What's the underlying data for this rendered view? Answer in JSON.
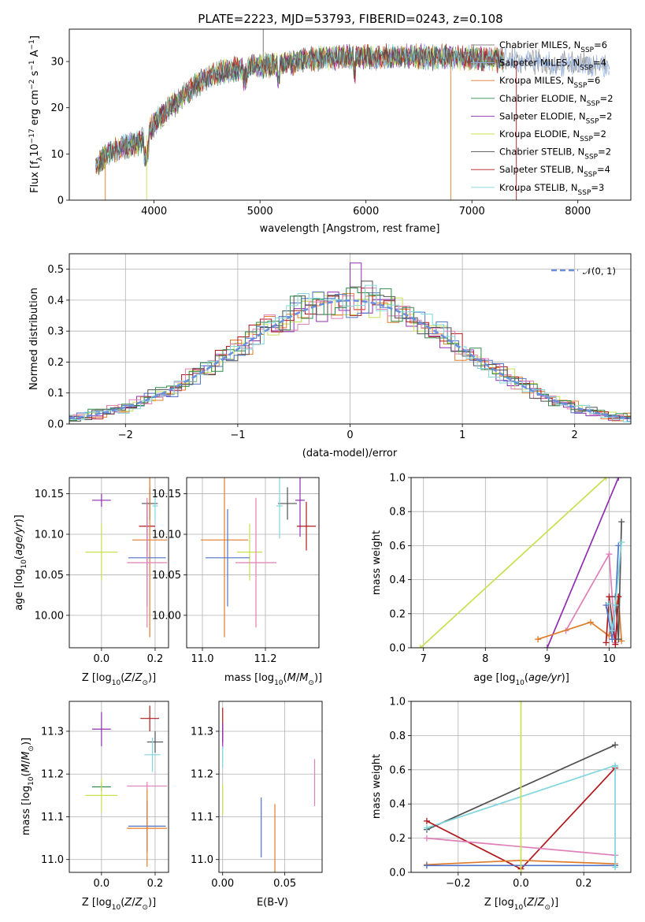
{
  "figure_title": "PLATE=2223, MJD=53793, FIBERID=0243, z=0.108",
  "colors": {
    "chabrier_miles": "#4e73c9",
    "salpeter_miles": "#e07b2a",
    "kroupa_miles": "#e07b2a",
    "chabrier_elodie": "#2f8a4a",
    "salpeter_elodie": "#8f2fb0",
    "kroupa_elodie": "#c8e050",
    "chabrier_stelib": "#505050",
    "salpeter_stelib": "#b0181c",
    "kroupa_stelib": "#7fd6dd",
    "pink": "#e07fb8",
    "normal": "#6a8fdc"
  },
  "chart_data": [
    {
      "id": "spectrum",
      "type": "line",
      "title": "PLATE=2223, MJD=53793, FIBERID=0243, z=0.108",
      "xlabel": "wavelength [Angstrom, rest frame]",
      "ylabel_main": "Flux [f",
      "ylabel_sub": "λ",
      "ylabel_rest": "10",
      "ylabel_exp1": "−17",
      "ylabel_mid": " erg cm",
      "ylabel_exp2": "−2",
      "ylabel_s": " s",
      "ylabel_exp3": "−1",
      "ylabel_a": " A",
      "ylabel_exp4": "−1",
      "ylabel_end": "]",
      "xlim": [
        3200,
        8500
      ],
      "ylim": [
        0,
        37
      ],
      "xticks": [
        4000,
        5000,
        6000,
        7000,
        8000
      ],
      "yticks": [
        0,
        10,
        20,
        30
      ],
      "legend_position": "upper-right",
      "legend": [
        {
          "name": "Chabrier MILES, N",
          "sub": "SSP",
          "tail": "=6",
          "color": "#8a8a8a"
        },
        {
          "name": "Salpeter MILES, N",
          "sub": "SSP",
          "tail": "=4",
          "color": "#8fb0e6"
        },
        {
          "name": "Kroupa MILES, N",
          "sub": "SSP",
          "tail": "=6",
          "color": "#e07b2a"
        },
        {
          "name": "Chabrier ELODIE, N",
          "sub": "SSP",
          "tail": "=2",
          "color": "#2f8a4a"
        },
        {
          "name": "Salpeter ELODIE, N",
          "sub": "SSP",
          "tail": "=2",
          "color": "#8f2fb0"
        },
        {
          "name": "Kroupa ELODIE, N",
          "sub": "SSP",
          "tail": "=2",
          "color": "#c8e050"
        },
        {
          "name": "Chabrier STELIB, N",
          "sub": "SSP",
          "tail": "=2",
          "color": "#505050"
        },
        {
          "name": "Salpeter STELIB, N",
          "sub": "SSP",
          "tail": "=4",
          "color": "#b0181c"
        },
        {
          "name": "Kroupa STELIB, N",
          "sub": "SSP",
          "tail": "=3",
          "color": "#7fd6dd"
        }
      ],
      "continuum": {
        "x": [
          3450,
          3600,
          3700,
          3800,
          3900,
          4000,
          4100,
          4200,
          4300,
          4400,
          4500,
          4600,
          4800,
          5000,
          5200,
          5500,
          5800,
          6000,
          6300,
          6600,
          6900,
          7200,
          7500,
          7800,
          8000,
          8300
        ],
        "y": [
          7.5,
          10.5,
          11.5,
          12,
          13,
          16.5,
          19,
          21,
          23,
          25,
          26.5,
          27.5,
          28.5,
          29,
          29.5,
          30.5,
          31,
          31,
          31,
          31,
          31,
          30.5,
          30,
          29.5,
          29.5,
          29
        ]
      }
    },
    {
      "id": "residual-histogram",
      "type": "line",
      "xlabel": "(data-model)/error",
      "ylabel": "Normed distribution",
      "xlim": [
        -2.5,
        2.5
      ],
      "ylim": [
        0,
        0.55
      ],
      "xticks": [
        -2,
        -1,
        0,
        1,
        2
      ],
      "xtick_labels": [
        "−2",
        "−1",
        "0",
        "1",
        "2"
      ],
      "yticks": [
        0.0,
        0.1,
        0.2,
        0.3,
        0.4,
        0.5
      ],
      "ytick_labels": [
        "0.0",
        "0.1",
        "0.2",
        "0.3",
        "0.4",
        "0.5"
      ],
      "legend": "𝒩(0, 1)",
      "legend_position": "top-right",
      "grid": true
    },
    {
      "id": "age-vs-Z",
      "type": "scatter",
      "xlabel": "Z [log",
      "ylabel": "age  [log",
      "xlim": [
        -0.12,
        0.25
      ],
      "ylim": [
        9.96,
        10.17
      ],
      "xticks": [
        0.0,
        0.2
      ],
      "xtick_labels": [
        "0.0",
        "0.2"
      ],
      "yticks": [
        10.0,
        10.05,
        10.1,
        10.15
      ],
      "ytick_labels": [
        "10.00",
        "10.05",
        "10.10",
        "10.15"
      ],
      "points": [
        {
          "x": 0.0,
          "y": 10.142,
          "xerr": 0.035,
          "yerr": 0.008,
          "color": "#8f2fb0"
        },
        {
          "x": 0.0,
          "y": 10.078,
          "xerr": 0.06,
          "yerr": 0.035,
          "color": "#c8e050"
        },
        {
          "x": 0.18,
          "y": 10.138,
          "xerr": 0.03,
          "yerr": 0.02,
          "color": "#505050"
        },
        {
          "x": 0.17,
          "y": 10.11,
          "xerr": 0.03,
          "yerr": 0.03,
          "color": "#b0181c"
        },
        {
          "x": 0.18,
          "y": 10.093,
          "xerr": 0.065,
          "yerr": 0.12,
          "color": "#e07b2a"
        },
        {
          "x": 0.17,
          "y": 10.071,
          "xerr": 0.07,
          "yerr": 0.06,
          "color": "#4e73c9"
        },
        {
          "x": 0.17,
          "y": 10.065,
          "xerr": 0.075,
          "yerr": 0.08,
          "color": "#e07fb8"
        },
        {
          "x": 0.2,
          "y": 10.135,
          "xerr": 0.01,
          "yerr": 0.02,
          "color": "#7fd6dd"
        }
      ]
    },
    {
      "id": "age-vs-mass",
      "type": "scatter",
      "xlabel": "mass [log",
      "xlim": [
        10.95,
        11.37
      ],
      "ylim": [
        9.96,
        10.17
      ],
      "xticks": [
        11.0,
        11.2
      ],
      "xtick_labels": [
        "11.0",
        "11.2"
      ],
      "yticks": [
        10.0,
        10.05,
        10.1,
        10.15
      ],
      "ytick_labels": [
        "10.00",
        "10.05",
        "10.10",
        "10.15"
      ],
      "points": [
        {
          "x": 11.31,
          "y": 10.142,
          "xerr": 0.015,
          "yerr": 0.045,
          "color": "#8f2fb0"
        },
        {
          "x": 11.15,
          "y": 10.078,
          "xerr": 0.04,
          "yerr": 0.035,
          "color": "#c8e050"
        },
        {
          "x": 11.27,
          "y": 10.138,
          "xerr": 0.03,
          "yerr": 0.02,
          "color": "#505050"
        },
        {
          "x": 11.33,
          "y": 10.11,
          "xerr": 0.03,
          "yerr": 0.03,
          "color": "#b0181c"
        },
        {
          "x": 11.07,
          "y": 10.093,
          "xerr": 0.075,
          "yerr": 0.12,
          "color": "#e07b2a"
        },
        {
          "x": 11.08,
          "y": 10.071,
          "xerr": 0.07,
          "yerr": 0.06,
          "color": "#4e73c9"
        },
        {
          "x": 11.17,
          "y": 10.065,
          "xerr": 0.065,
          "yerr": 0.08,
          "color": "#e07fb8"
        },
        {
          "x": 11.245,
          "y": 10.135,
          "xerr": 0.01,
          "yerr": 0.04,
          "color": "#7fd6dd"
        }
      ]
    },
    {
      "id": "weight-vs-age",
      "type": "line",
      "xlabel": "age  [log",
      "ylabel": "mass weight",
      "xlim": [
        6.8,
        10.35
      ],
      "ylim": [
        0,
        1.0
      ],
      "xticks": [
        7,
        8,
        9,
        10
      ],
      "xtick_labels": [
        "7",
        "8",
        "9",
        "10"
      ],
      "yticks": [
        0.0,
        0.2,
        0.4,
        0.6,
        0.8,
        1.0
      ],
      "ytick_labels": [
        "0.0",
        "0.2",
        "0.4",
        "0.6",
        "0.8",
        "1.0"
      ],
      "series": [
        {
          "color": "#c8e050",
          "x": [
            6.95,
            9.95
          ],
          "y": [
            0.0,
            1.0
          ]
        },
        {
          "color": "#8f2fb0",
          "x": [
            9.0,
            10.15
          ],
          "y": [
            0.0,
            1.0
          ]
        },
        {
          "color": "#e07fb8",
          "x": [
            9.3,
            10.0,
            10.1
          ],
          "y": [
            0.1,
            0.55,
            0.03
          ]
        },
        {
          "color": "#e07b2a",
          "x": [
            8.85,
            9.7,
            10.0,
            10.15,
            10.2
          ],
          "y": [
            0.05,
            0.15,
            0.07,
            0.3,
            0.04
          ]
        },
        {
          "color": "#505050",
          "x": [
            10.1,
            10.15,
            10.2
          ],
          "y": [
            0.3,
            0.05,
            0.74
          ]
        },
        {
          "color": "#b0181c",
          "x": [
            9.95,
            10.0,
            10.1,
            10.15
          ],
          "y": [
            0.03,
            0.3,
            0.02,
            0.3
          ]
        },
        {
          "color": "#4e73c9",
          "x": [
            9.95,
            10.05,
            10.1,
            10.15
          ],
          "y": [
            0.25,
            0.05,
            0.25,
            0.6
          ]
        },
        {
          "color": "#7fd6dd",
          "x": [
            10.0,
            10.05,
            10.1,
            10.2
          ],
          "y": [
            0.26,
            0.1,
            0.25,
            0.62
          ]
        }
      ]
    },
    {
      "id": "mass-vs-Z",
      "type": "scatter",
      "xlabel": "Z [log",
      "ylabel": "mass [log",
      "xlim": [
        -0.12,
        0.25
      ],
      "ylim": [
        10.97,
        11.37
      ],
      "xticks": [
        0.0,
        0.2
      ],
      "xtick_labels": [
        "0.0",
        "0.2"
      ],
      "yticks": [
        11.0,
        11.1,
        11.2,
        11.3
      ],
      "ytick_labels": [
        "11.0",
        "11.1",
        "11.2",
        "11.3"
      ],
      "points": [
        {
          "x": 0.0,
          "y": 11.305,
          "xerr": 0.035,
          "yerr": 0.04,
          "color": "#8f2fb0"
        },
        {
          "x": 0.18,
          "y": 11.33,
          "xerr": 0.035,
          "yerr": 0.03,
          "color": "#b0181c"
        },
        {
          "x": 0.2,
          "y": 11.275,
          "xerr": 0.03,
          "yerr": 0.025,
          "color": "#505050"
        },
        {
          "x": 0.19,
          "y": 11.245,
          "xerr": 0.03,
          "yerr": 0.04,
          "color": "#7fd6dd"
        },
        {
          "x": 0.0,
          "y": 11.17,
          "xerr": 0.035,
          "yerr": 0.01,
          "color": "#2f8a4a"
        },
        {
          "x": 0.17,
          "y": 11.172,
          "xerr": 0.075,
          "yerr": 0.01,
          "color": "#e07fb8"
        },
        {
          "x": 0.0,
          "y": 11.15,
          "xerr": 0.06,
          "yerr": 0.04,
          "color": "#c8e050"
        },
        {
          "x": 0.17,
          "y": 11.078,
          "xerr": 0.07,
          "yerr": 0.06,
          "color": "#4e73c9"
        },
        {
          "x": 0.17,
          "y": 11.073,
          "xerr": 0.075,
          "yerr": 0.09,
          "color": "#e07b2a"
        }
      ]
    },
    {
      "id": "mass-vs-ebv",
      "type": "scatter",
      "xlabel": "E(B-V)",
      "xlim": [
        -0.003,
        0.08
      ],
      "ylim": [
        10.97,
        11.37
      ],
      "xticks": [
        0.0,
        0.05
      ],
      "xtick_labels": [
        "0.00",
        "0.05"
      ],
      "yticks": [
        11.0,
        11.1,
        11.2,
        11.3
      ],
      "ytick_labels": [
        "11.0",
        "11.1",
        "11.2",
        "11.3"
      ],
      "points": [
        {
          "x": 0.0,
          "y": 11.315,
          "yerr": 0.04,
          "color": "#b0181c"
        },
        {
          "x": 0.0,
          "y": 11.29,
          "yerr": 0.03,
          "color": "#8f2fb0"
        },
        {
          "x": 0.0,
          "y": 11.24,
          "yerr": 0.025,
          "color": "#7fd6dd"
        },
        {
          "x": 0.0,
          "y": 11.14,
          "yerr": 0.035,
          "color": "#c8e050"
        },
        {
          "x": 0.031,
          "y": 11.075,
          "yerr": 0.07,
          "color": "#4e73c9"
        },
        {
          "x": 0.042,
          "y": 11.04,
          "yerr": 0.09,
          "color": "#e07b2a"
        },
        {
          "x": 0.074,
          "y": 11.18,
          "yerr": 0.055,
          "color": "#e07fb8"
        }
      ]
    },
    {
      "id": "weight-vs-Z",
      "type": "line",
      "xlabel": "Z [log",
      "ylabel": "mass weight",
      "xlim": [
        -0.35,
        0.35
      ],
      "ylim": [
        0,
        1.0
      ],
      "xticks": [
        -0.2,
        0.0,
        0.2
      ],
      "xtick_labels": [
        "−0.2",
        "0.0",
        "0.2"
      ],
      "yticks": [
        0.0,
        0.2,
        0.4,
        0.6,
        0.8,
        1.0
      ],
      "ytick_labels": [
        "0.0",
        "0.2",
        "0.4",
        "0.6",
        "0.8",
        "1.0"
      ],
      "series": [
        {
          "color": "#505050",
          "x": [
            -0.3,
            0.3
          ],
          "y": [
            0.25,
            0.745
          ]
        },
        {
          "color": "#7fd6dd",
          "x": [
            -0.3,
            0.3
          ],
          "y": [
            0.26,
            0.625
          ]
        },
        {
          "color": "#b0181c",
          "x": [
            -0.3,
            0.0,
            0.3
          ],
          "y": [
            0.3,
            0.02,
            0.61
          ]
        },
        {
          "color": "#e07fb8",
          "x": [
            -0.3,
            0.3
          ],
          "y": [
            0.2,
            0.1
          ]
        },
        {
          "color": "#e07b2a",
          "x": [
            -0.3,
            0.0,
            0.3
          ],
          "y": [
            0.045,
            0.07,
            0.05
          ]
        },
        {
          "color": "#4e73c9",
          "x": [
            -0.3,
            0.0,
            0.3
          ],
          "y": [
            0.04,
            0.04,
            0.04
          ]
        },
        {
          "color": "#c8e050",
          "x": [
            0.0,
            0.0
          ],
          "y": [
            0.0,
            1.0
          ]
        },
        {
          "color": "#7fd6dd",
          "x": [
            0.3,
            0.3
          ],
          "y": [
            0.03,
            0.62
          ]
        }
      ]
    }
  ]
}
